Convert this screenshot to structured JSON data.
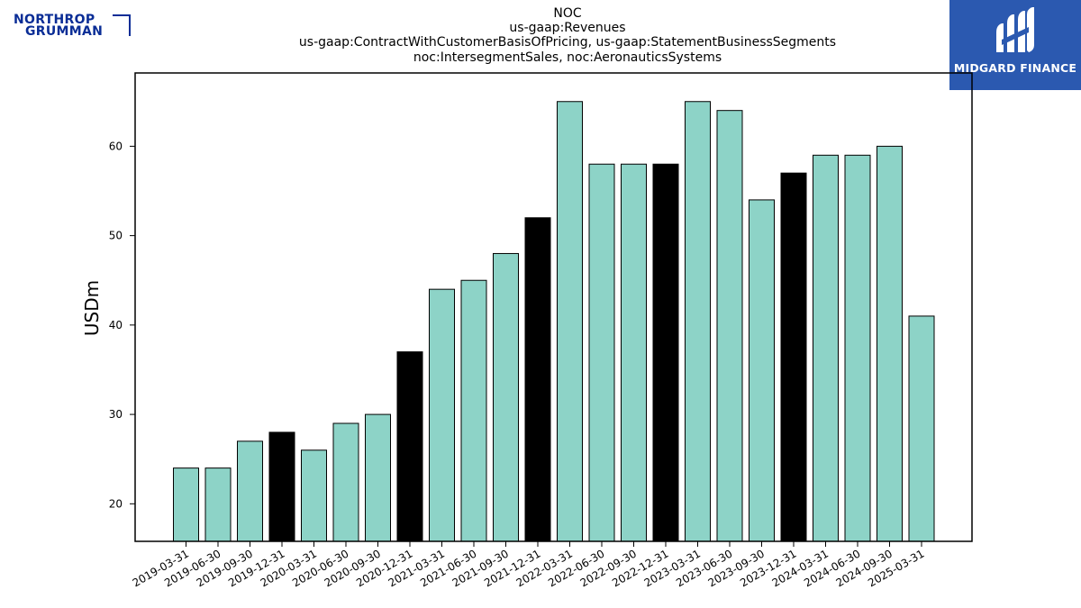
{
  "header": {
    "title_lines": [
      "NOC",
      "us-gaap:Revenues",
      "us-gaap:ContractWithCustomerBasisOfPricing, us-gaap:StatementBusinessSegments",
      "noc:IntersegmentSales, noc:AeronauticsSystems"
    ]
  },
  "logos": {
    "left_line1": "NORTHROP",
    "left_line2": "GRUMMAN",
    "right_name": "MIDGARD FINANCE"
  },
  "colors": {
    "bar_default": "#8dd3c7",
    "bar_highlight": "#000000",
    "left_logo": "#0a2d96",
    "right_logo_bg": "#2b59b0"
  },
  "chart_data": {
    "type": "bar",
    "ylabel": "USDm",
    "xlabel": "",
    "ylim": [
      15.8,
      68.2
    ],
    "yticks": [
      20,
      30,
      40,
      50,
      60
    ],
    "categories": [
      "2019-03-31",
      "2019-06-30",
      "2019-09-30",
      "2019-12-31",
      "2020-03-31",
      "2020-06-30",
      "2020-09-30",
      "2020-12-31",
      "2021-03-31",
      "2021-06-30",
      "2021-09-30",
      "2021-12-31",
      "2022-03-31",
      "2022-06-30",
      "2022-09-30",
      "2022-12-31",
      "2023-03-31",
      "2023-06-30",
      "2023-09-30",
      "2023-12-31",
      "2024-03-31",
      "2024-06-30",
      "2024-09-30",
      "2025-03-31"
    ],
    "values": [
      24,
      24,
      27,
      28,
      26,
      29,
      30,
      37,
      44,
      45,
      48,
      52,
      65,
      58,
      58,
      58,
      65,
      64,
      54,
      57,
      59,
      59,
      60,
      41
    ],
    "highlight": [
      false,
      false,
      false,
      true,
      false,
      false,
      false,
      true,
      false,
      false,
      false,
      true,
      false,
      false,
      false,
      true,
      false,
      false,
      false,
      true,
      false,
      false,
      false,
      false
    ]
  }
}
